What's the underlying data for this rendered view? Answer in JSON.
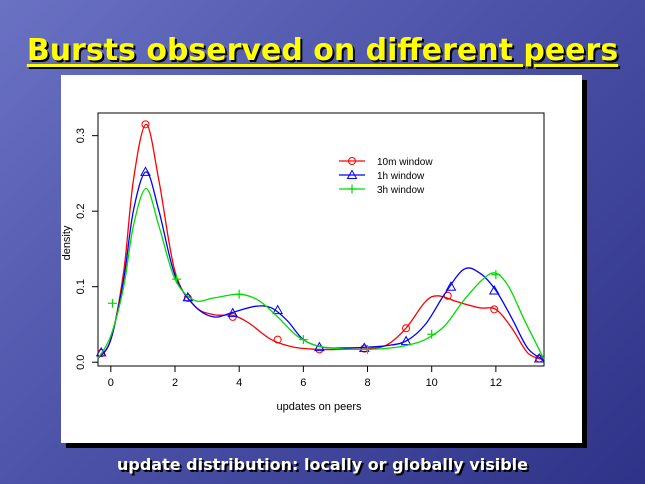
{
  "slide": {
    "title": "Bursts observed on different peers",
    "caption": "update distribution: locally or globally visible"
  },
  "chart_data": {
    "type": "line",
    "title": "",
    "xlabel": "updates on peers",
    "ylabel": "density",
    "xlim": [
      -0.4,
      13.5
    ],
    "ylim": [
      -0.005,
      0.33
    ],
    "xticks": [
      0,
      2,
      4,
      6,
      8,
      10,
      12
    ],
    "yticks": [
      0.0,
      0.1,
      0.2,
      0.3
    ],
    "ytick_labels": [
      "0.0",
      "0.1",
      "0.2",
      "0.3"
    ],
    "grid": false,
    "legend_position": "top-right",
    "series": [
      {
        "name": "10m window",
        "color": "#ff0000",
        "marker": "circle",
        "curve": [
          [
            -0.4,
            0.005
          ],
          [
            0,
            0.03
          ],
          [
            0.4,
            0.12
          ],
          [
            0.7,
            0.24
          ],
          [
            1.1,
            0.315
          ],
          [
            1.5,
            0.24
          ],
          [
            2.0,
            0.12
          ],
          [
            2.6,
            0.075
          ],
          [
            3.2,
            0.063
          ],
          [
            3.8,
            0.062
          ],
          [
            4.3,
            0.052
          ],
          [
            5.0,
            0.03
          ],
          [
            5.7,
            0.02
          ],
          [
            6.5,
            0.017
          ],
          [
            7.2,
            0.017
          ],
          [
            8.0,
            0.018
          ],
          [
            8.6,
            0.023
          ],
          [
            9.2,
            0.045
          ],
          [
            9.8,
            0.08
          ],
          [
            10.2,
            0.088
          ],
          [
            10.8,
            0.08
          ],
          [
            11.5,
            0.072
          ],
          [
            12.0,
            0.07
          ],
          [
            12.5,
            0.045
          ],
          [
            13.0,
            0.012
          ],
          [
            13.5,
            0.003
          ]
        ],
        "markers_x": [
          -0.3,
          1.08,
          2.4,
          3.8,
          5.2,
          6.5,
          7.9,
          9.2,
          10.5,
          11.95,
          13.35
        ],
        "markers_y": [
          0.012,
          0.315,
          0.085,
          0.06,
          0.03,
          0.017,
          0.018,
          0.045,
          0.088,
          0.07,
          0.005
        ]
      },
      {
        "name": "1h window",
        "color": "#0000ff",
        "marker": "triangle",
        "curve": [
          [
            -0.4,
            0.005
          ],
          [
            0,
            0.03
          ],
          [
            0.4,
            0.11
          ],
          [
            0.7,
            0.2
          ],
          [
            1.1,
            0.252
          ],
          [
            1.5,
            0.2
          ],
          [
            2.0,
            0.115
          ],
          [
            2.6,
            0.075
          ],
          [
            3.2,
            0.06
          ],
          [
            3.8,
            0.066
          ],
          [
            4.5,
            0.074
          ],
          [
            5.0,
            0.072
          ],
          [
            5.5,
            0.055
          ],
          [
            6.0,
            0.03
          ],
          [
            6.6,
            0.02
          ],
          [
            7.3,
            0.019
          ],
          [
            8.0,
            0.02
          ],
          [
            8.6,
            0.022
          ],
          [
            9.2,
            0.028
          ],
          [
            9.8,
            0.05
          ],
          [
            10.4,
            0.09
          ],
          [
            11.0,
            0.123
          ],
          [
            11.5,
            0.118
          ],
          [
            12.0,
            0.095
          ],
          [
            12.5,
            0.058
          ],
          [
            13.0,
            0.018
          ],
          [
            13.5,
            0.003
          ]
        ],
        "markers_x": [
          -0.3,
          1.08,
          2.4,
          3.8,
          5.2,
          6.5,
          7.9,
          9.2,
          10.6,
          11.95,
          13.35
        ],
        "markers_y": [
          0.013,
          0.252,
          0.086,
          0.065,
          0.069,
          0.02,
          0.019,
          0.028,
          0.1,
          0.095,
          0.005
        ]
      },
      {
        "name": "3h window",
        "color": "#00dd00",
        "marker": "plus",
        "curve": [
          [
            -0.4,
            0.005
          ],
          [
            0,
            0.035
          ],
          [
            0.4,
            0.1
          ],
          [
            0.7,
            0.18
          ],
          [
            1.1,
            0.23
          ],
          [
            1.5,
            0.18
          ],
          [
            2.0,
            0.11
          ],
          [
            2.6,
            0.082
          ],
          [
            3.2,
            0.085
          ],
          [
            4.0,
            0.09
          ],
          [
            4.6,
            0.082
          ],
          [
            5.2,
            0.06
          ],
          [
            5.8,
            0.035
          ],
          [
            6.4,
            0.022
          ],
          [
            7.1,
            0.018
          ],
          [
            7.8,
            0.017
          ],
          [
            8.5,
            0.018
          ],
          [
            9.2,
            0.022
          ],
          [
            9.8,
            0.03
          ],
          [
            10.4,
            0.048
          ],
          [
            11.0,
            0.082
          ],
          [
            11.6,
            0.11
          ],
          [
            12.0,
            0.118
          ],
          [
            12.4,
            0.1
          ],
          [
            12.9,
            0.055
          ],
          [
            13.5,
            0.004
          ]
        ],
        "markers_x": [
          0.05,
          2.05,
          4.0,
          6.0,
          8.0,
          10.0,
          12.0
        ],
        "markers_y": [
          0.078,
          0.11,
          0.09,
          0.03,
          0.017,
          0.037,
          0.116
        ]
      }
    ]
  }
}
